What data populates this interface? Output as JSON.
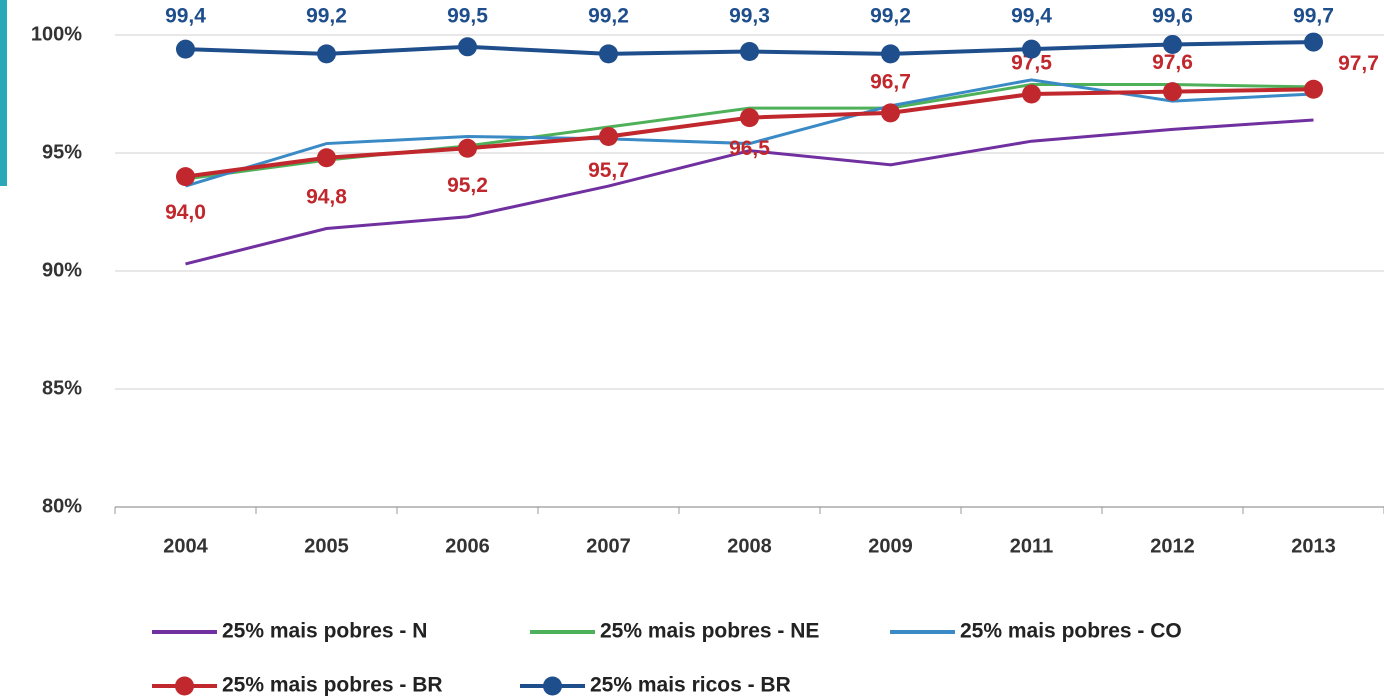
{
  "chart_data": {
    "type": "line",
    "categories": [
      "2004",
      "2005",
      "2006",
      "2007",
      "2008",
      "2009",
      "2011",
      "2012",
      "2013"
    ],
    "ylim": [
      80,
      100
    ],
    "yticks": [
      {
        "value": 80,
        "label": "80%"
      },
      {
        "value": 85,
        "label": "85%"
      },
      {
        "value": 90,
        "label": "90%"
      },
      {
        "value": 95,
        "label": "95%"
      },
      {
        "value": 100,
        "label": "100%"
      }
    ],
    "grid": true,
    "series": [
      {
        "name": "25% mais pobres - N",
        "color": "#7030a0",
        "values": [
          90.3,
          91.8,
          92.3,
          93.6,
          95.1,
          94.5,
          95.5,
          96.0,
          96.4
        ]
      },
      {
        "name": "25% mais pobres - NE",
        "color": "#4fb05a",
        "values": [
          93.9,
          94.7,
          95.3,
          96.1,
          96.9,
          96.9,
          97.9,
          97.9,
          97.8
        ]
      },
      {
        "name": "25% mais pobres - CO",
        "color": "#3a8ac6",
        "values": [
          93.6,
          95.4,
          95.7,
          95.6,
          95.4,
          97.0,
          98.1,
          97.2,
          97.5
        ]
      },
      {
        "name": "25% mais pobres - BR",
        "color": "#c0282d",
        "markers": true,
        "values": [
          94.0,
          94.8,
          95.2,
          95.7,
          96.5,
          96.7,
          97.5,
          97.6,
          97.7
        ],
        "value_labels": [
          "94,0",
          "94,8",
          "95,2",
          "95,7",
          "96,5",
          "96,7",
          "97,5",
          "97,6",
          "97,7"
        ]
      },
      {
        "name": "25% mais ricos - BR",
        "color": "#1f4e8c",
        "markers": true,
        "values": [
          99.4,
          99.2,
          99.5,
          99.2,
          99.3,
          99.2,
          99.4,
          99.6,
          99.7
        ],
        "value_labels": [
          "99,4",
          "99,2",
          "99,5",
          "99,2",
          "99,3",
          "99,2",
          "99,4",
          "99,6",
          "99,7"
        ]
      }
    ]
  }
}
